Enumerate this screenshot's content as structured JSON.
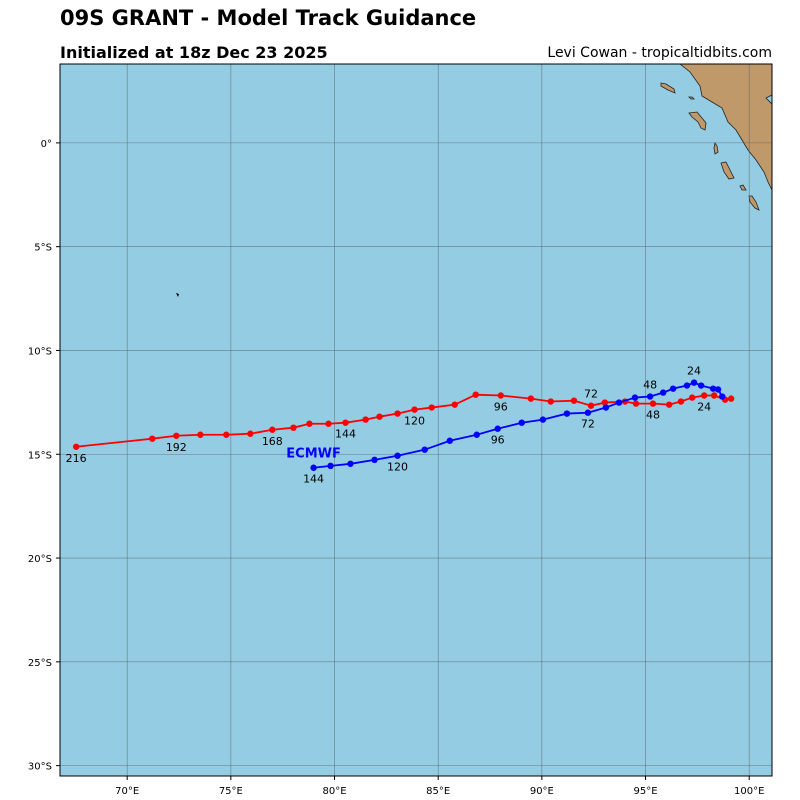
{
  "header": {
    "title": "09S GRANT - Model Track Guidance",
    "subtitle": "Initialized at 18z Dec 23 2025",
    "credit": "Levi Cowan - tropicaltidbits.com"
  },
  "map": {
    "extent": {
      "lon": [
        66.76,
        101.1
      ],
      "lat": [
        -30.5,
        3.8
      ]
    },
    "ocean_color": "#94cde3",
    "land_color": "#c0996b",
    "grid": true,
    "lon_ticks": [
      {
        "v": 70,
        "label": "70°E"
      },
      {
        "v": 75,
        "label": "75°E"
      },
      {
        "v": 80,
        "label": "80°E"
      },
      {
        "v": 85,
        "label": "85°E"
      },
      {
        "v": 90,
        "label": "90°E"
      },
      {
        "v": 95,
        "label": "95°E"
      },
      {
        "v": 100,
        "label": "100°E"
      }
    ],
    "lat_ticks": [
      {
        "v": 0,
        "label": "0°"
      },
      {
        "v": -5,
        "label": "5°S"
      },
      {
        "v": -10,
        "label": "10°S"
      },
      {
        "v": -15,
        "label": "15°S"
      },
      {
        "v": -20,
        "label": "20°S"
      },
      {
        "v": -25,
        "label": "25°S"
      },
      {
        "v": -30,
        "label": "30°S"
      }
    ]
  },
  "tracks": [
    {
      "model": "",
      "color": "#ff0000",
      "points": [
        {
          "lon": 99.13,
          "lat": -12.32
        },
        {
          "lon": 98.84,
          "lat": -12.37
        },
        {
          "lon": 98.31,
          "lat": -12.17
        },
        {
          "lon": 97.83,
          "lat": -12.17,
          "hour": "24"
        },
        {
          "lon": 97.25,
          "lat": -12.27
        },
        {
          "lon": 96.71,
          "lat": -12.46
        },
        {
          "lon": 96.14,
          "lat": -12.61
        },
        {
          "lon": 95.36,
          "lat": -12.56,
          "hour": "48"
        },
        {
          "lon": 94.54,
          "lat": -12.56
        },
        {
          "lon": 94.01,
          "lat": -12.46
        },
        {
          "lon": 93.04,
          "lat": -12.51
        },
        {
          "lon": 92.37,
          "lat": -12.66,
          "hour": "72"
        },
        {
          "lon": 91.55,
          "lat": -12.42
        },
        {
          "lon": 90.43,
          "lat": -12.46
        },
        {
          "lon": 89.47,
          "lat": -12.32
        },
        {
          "lon": 88.02,
          "lat": -12.17,
          "hour": "96"
        },
        {
          "lon": 86.81,
          "lat": -12.13
        },
        {
          "lon": 85.8,
          "lat": -12.61
        },
        {
          "lon": 84.69,
          "lat": -12.75
        },
        {
          "lon": 83.86,
          "lat": -12.85,
          "hour": "120"
        },
        {
          "lon": 83.04,
          "lat": -13.04
        },
        {
          "lon": 82.17,
          "lat": -13.19
        },
        {
          "lon": 81.5,
          "lat": -13.33
        },
        {
          "lon": 80.53,
          "lat": -13.48,
          "hour": "144"
        },
        {
          "lon": 79.71,
          "lat": -13.53
        },
        {
          "lon": 78.79,
          "lat": -13.53
        },
        {
          "lon": 78.02,
          "lat": -13.72
        },
        {
          "lon": 77.0,
          "lat": -13.82,
          "hour": "168"
        },
        {
          "lon": 75.94,
          "lat": -14.01
        },
        {
          "lon": 74.78,
          "lat": -14.06
        },
        {
          "lon": 73.53,
          "lat": -14.06
        },
        {
          "lon": 72.37,
          "lat": -14.11,
          "hour": "192"
        },
        {
          "lon": 71.21,
          "lat": -14.25
        },
        {
          "lon": 67.54,
          "lat": -14.64,
          "hour": "216"
        }
      ]
    },
    {
      "model": "ECMWF",
      "color": "#0000ff",
      "points": [
        {
          "lon": 98.7,
          "lat": -12.22
        },
        {
          "lon": 98.5,
          "lat": -11.88
        },
        {
          "lon": 98.26,
          "lat": -11.84
        },
        {
          "lon": 97.68,
          "lat": -11.69
        },
        {
          "lon": 97.34,
          "lat": -11.55,
          "hour": "24"
        },
        {
          "lon": 97.0,
          "lat": -11.69
        },
        {
          "lon": 96.33,
          "lat": -11.84
        },
        {
          "lon": 95.85,
          "lat": -12.03
        },
        {
          "lon": 95.22,
          "lat": -12.22,
          "hour": "48"
        },
        {
          "lon": 94.49,
          "lat": -12.27
        },
        {
          "lon": 93.72,
          "lat": -12.51
        },
        {
          "lon": 93.09,
          "lat": -12.75
        },
        {
          "lon": 92.22,
          "lat": -13.0,
          "hour": "72"
        },
        {
          "lon": 91.21,
          "lat": -13.04
        },
        {
          "lon": 90.05,
          "lat": -13.33
        },
        {
          "lon": 89.03,
          "lat": -13.48
        },
        {
          "lon": 87.87,
          "lat": -13.77,
          "hour": "96"
        },
        {
          "lon": 86.86,
          "lat": -14.06
        },
        {
          "lon": 85.56,
          "lat": -14.35
        },
        {
          "lon": 84.35,
          "lat": -14.78
        },
        {
          "lon": 83.04,
          "lat": -15.07,
          "hour": "120"
        },
        {
          "lon": 81.93,
          "lat": -15.27
        },
        {
          "lon": 80.77,
          "lat": -15.46
        },
        {
          "lon": 79.81,
          "lat": -15.56
        },
        {
          "lon": 78.99,
          "lat": -15.65,
          "hour": "144"
        }
      ]
    }
  ]
}
